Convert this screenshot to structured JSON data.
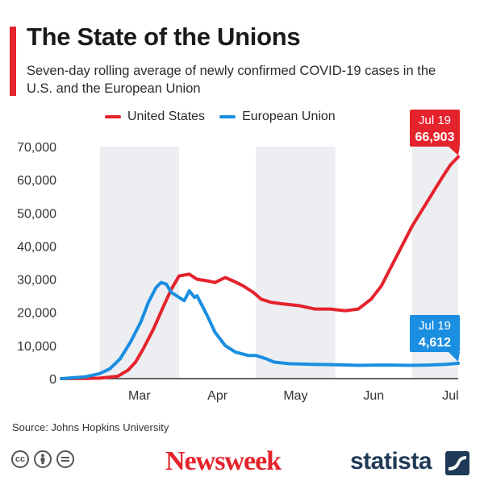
{
  "header": {
    "title": "The State of the Unions",
    "subtitle": "Seven-day rolling average of newly confirmed COVID-19 cases in the U.S. and the European Union"
  },
  "legend": [
    {
      "label": "United States",
      "color": "#e4232c"
    },
    {
      "label": "European Union",
      "color": "#1a8ee0"
    }
  ],
  "source": "Source: Johns Hopkins University",
  "brands": {
    "newsweek": "Newsweek",
    "statista": "statista"
  },
  "license_icons": [
    "cc-icon",
    "attribution-icon",
    "no-derivatives-icon"
  ],
  "colors": {
    "us": "#e4232c",
    "eu": "#1a8ee0",
    "band": "#eceef2"
  },
  "chart_data": {
    "type": "line",
    "x_start": "Feb 15",
    "x_end": "Jul 19",
    "x_ticks": [
      "Mar",
      "Apr",
      "May",
      "Jun",
      "Jul"
    ],
    "y_ticks": [
      "0",
      "10,000",
      "20,000",
      "30,000",
      "40,000",
      "50,000",
      "60,000",
      "70,000"
    ],
    "ylim": [
      0,
      70000
    ],
    "grid": false,
    "legend_position": "top",
    "series": [
      {
        "name": "United States",
        "color": "#e4232c",
        "x": [
          "Feb 15",
          "Feb 24",
          "Mar 1",
          "Mar 8",
          "Mar 12",
          "Mar 15",
          "Mar 18",
          "Mar 22",
          "Mar 26",
          "Mar 29",
          "Apr 1",
          "Apr 5",
          "Apr 8",
          "Apr 12",
          "Apr 15",
          "Apr 19",
          "Apr 22",
          "Apr 26",
          "Apr 30",
          "May 3",
          "May 7",
          "May 12",
          "May 18",
          "May 24",
          "May 30",
          "Jun 5",
          "Jun 10",
          "Jun 15",
          "Jun 19",
          "Jun 23",
          "Jun 27",
          "Jul 1",
          "Jul 5",
          "Jul 9",
          "Jul 13",
          "Jul 16",
          "Jul 19"
        ],
        "values": [
          0,
          50,
          150,
          700,
          2500,
          5000,
          9000,
          15000,
          22000,
          27000,
          31000,
          31500,
          30000,
          29500,
          29000,
          30500,
          29500,
          28000,
          26000,
          24000,
          23000,
          22500,
          22000,
          21000,
          21000,
          20500,
          21000,
          24000,
          28000,
          34000,
          40000,
          46000,
          51000,
          56000,
          61000,
          64500,
          66903
        ],
        "end_label": {
          "date": "Jul 19",
          "value": "66,903"
        }
      },
      {
        "name": "European Union",
        "color": "#1a8ee0",
        "x": [
          "Feb 15",
          "Feb 24",
          "Mar 1",
          "Mar 5",
          "Mar 9",
          "Mar 13",
          "Mar 17",
          "Mar 20",
          "Mar 23",
          "Mar 25",
          "Mar 27",
          "Mar 29",
          "Apr 1",
          "Apr 3",
          "Apr 5",
          "Apr 7",
          "Apr 8",
          "Apr 12",
          "Apr 15",
          "Apr 19",
          "Apr 23",
          "Apr 28",
          "May 1",
          "May 5",
          "May 8",
          "May 14",
          "May 19",
          "May 23",
          "Jun 1",
          "Jun 10",
          "Jun 20",
          "Jun 30",
          "Jul 8",
          "Jul 14",
          "Jul 19"
        ],
        "values": [
          0,
          500,
          1500,
          3000,
          6000,
          11000,
          17000,
          23000,
          27500,
          29000,
          28500,
          26000,
          24500,
          23500,
          26500,
          24500,
          25000,
          19000,
          14000,
          10000,
          8000,
          7000,
          7000,
          6000,
          5000,
          4500,
          4400,
          4300,
          4200,
          4000,
          4100,
          4000,
          4100,
          4300,
          4612
        ],
        "end_label": {
          "date": "Jul 19",
          "value": "4,612"
        }
      }
    ]
  }
}
